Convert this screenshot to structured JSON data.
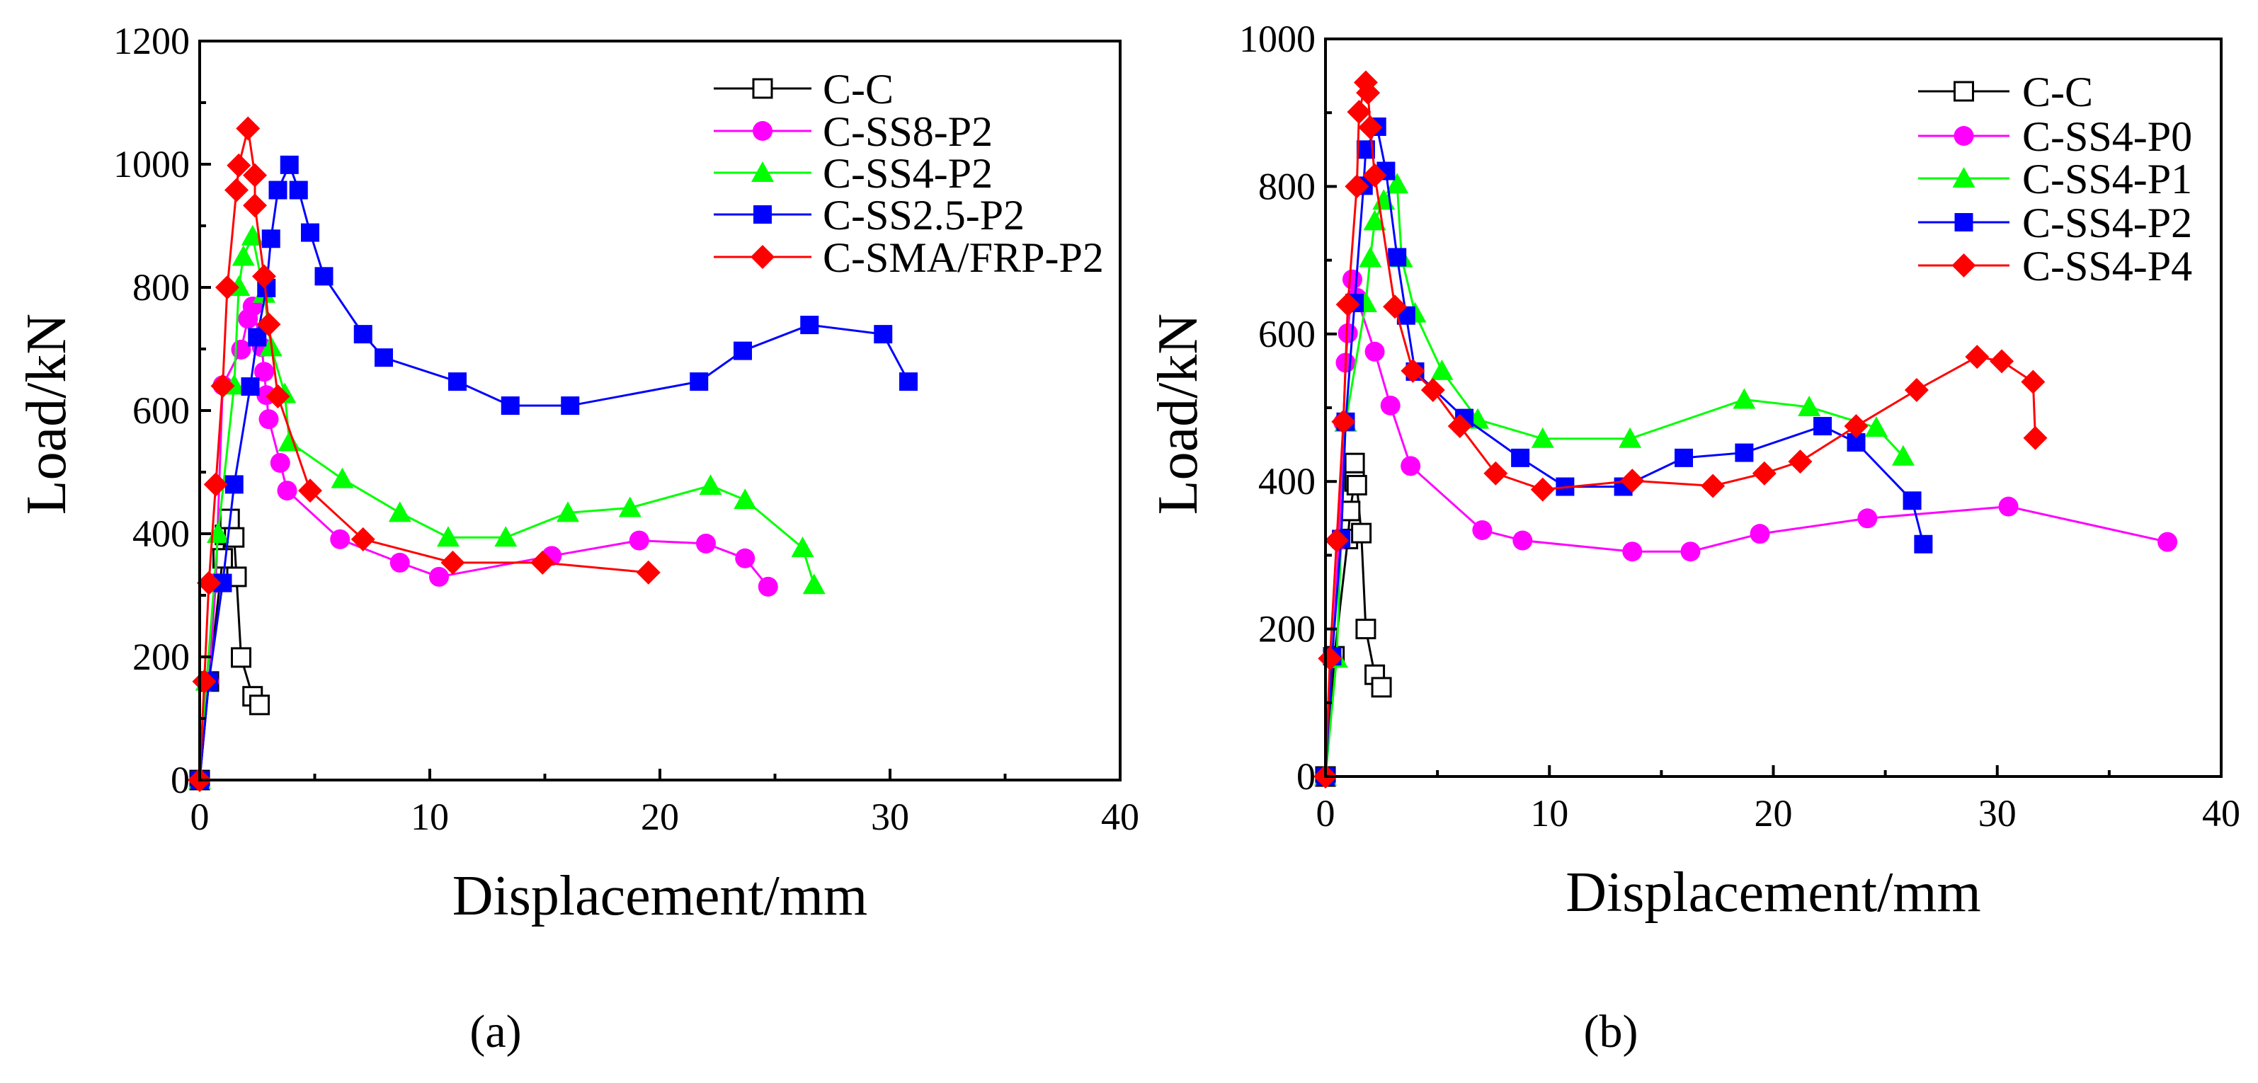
{
  "chart_data": [
    {
      "type": "line",
      "panel_label": "(a)",
      "panel_letter": "a",
      "xlabel": "Displacement/mm",
      "ylabel": "Load/kN",
      "xlim": [
        0,
        40
      ],
      "ylim": [
        0,
        1200
      ],
      "xticks": [
        0,
        10,
        20,
        30,
        40
      ],
      "yticks": [
        0,
        200,
        400,
        600,
        800,
        1000,
        1200
      ],
      "grid": false,
      "legend_position": "top-right",
      "series": [
        {
          "name": "C-C",
          "color": "#000000",
          "marker": "square-open",
          "x": [
            0,
            0.4,
            1.0,
            1.1,
            1.3,
            1.5,
            1.6,
            1.8,
            2.3,
            2.6
          ],
          "y": [
            0,
            160,
            360,
            398,
            424,
            394,
            330,
            199,
            136,
            122
          ]
        },
        {
          "name": "C-SS8-P2",
          "color": "#ff00ff",
          "marker": "circle",
          "x": [
            0,
            0.4,
            0.7,
            1.0,
            1.8,
            2.1,
            2.3,
            2.7,
            2.8,
            2.9,
            3.0,
            3.5,
            3.8,
            6.1,
            8.7,
            10.4,
            15.3,
            19.1,
            22.0,
            23.7,
            24.7
          ],
          "y": [
            0,
            160,
            320,
            641,
            699,
            749,
            769,
            703,
            663,
            625,
            586,
            515,
            470,
            391,
            353,
            330,
            364,
            389,
            384,
            360,
            314
          ]
        },
        {
          "name": "C-SS4-P2",
          "color": "#00ff00",
          "marker": "triangle",
          "x": [
            0,
            0.3,
            0.8,
            1.5,
            1.7,
            1.9,
            2.3,
            2.8,
            3.1,
            3.7,
            3.9,
            6.2,
            8.7,
            10.8,
            13.3,
            16.0,
            18.7,
            22.2,
            23.7,
            26.2,
            26.7
          ],
          "y": [
            0,
            160,
            400,
            641,
            801,
            850,
            883,
            790,
            703,
            627,
            549,
            489,
            434,
            394,
            394,
            434,
            442,
            478,
            455,
            377,
            317
          ]
        },
        {
          "name": "C-SS2.5-P2",
          "color": "#0000ff",
          "marker": "square",
          "x": [
            0,
            0.4,
            1.0,
            1.5,
            2.2,
            2.5,
            2.9,
            3.1,
            3.4,
            3.9,
            4.3,
            4.8,
            5.4,
            7.1,
            8.0,
            11.2,
            13.5,
            16.1,
            21.7,
            23.6,
            26.5,
            29.7,
            30.8
          ],
          "y": [
            0,
            160,
            320,
            480,
            639,
            719,
            799,
            879,
            958,
            999,
            958,
            889,
            818,
            724,
            686,
            647,
            608,
            608,
            647,
            697,
            739,
            724,
            647
          ]
        },
        {
          "name": "C-SMA/FRP-P2",
          "color": "#ff0000",
          "marker": "diamond",
          "x": [
            0,
            0.2,
            0.4,
            0.7,
            1.0,
            1.2,
            1.6,
            1.7,
            2.1,
            2.4,
            2.4,
            2.8,
            3.0,
            3.4,
            4.8,
            7.1,
            11.0,
            14.9,
            19.5
          ],
          "y": [
            0,
            160,
            320,
            480,
            640,
            800,
            958,
            998,
            1058,
            982,
            933,
            818,
            740,
            623,
            470,
            391,
            353,
            353,
            337
          ]
        }
      ]
    },
    {
      "type": "line",
      "panel_label": "(b)",
      "panel_letter": "b",
      "xlabel": "Displacement/mm",
      "ylabel": "Load/kN",
      "xlim": [
        0,
        40
      ],
      "ylim": [
        0,
        1000
      ],
      "xticks": [
        0,
        10,
        20,
        30,
        40
      ],
      "yticks": [
        0,
        200,
        400,
        600,
        800,
        1000
      ],
      "grid": false,
      "legend_position": "top-right",
      "series": [
        {
          "name": "C-C",
          "color": "#000000",
          "marker": "square-open",
          "x": [
            0,
            0.4,
            1.0,
            1.1,
            1.3,
            1.3,
            1.4,
            1.6,
            1.8,
            2.2,
            2.5
          ],
          "y": [
            0,
            163,
            322,
            360,
            400,
            425,
            395,
            330,
            200,
            138,
            121
          ]
        },
        {
          "name": "C-SS4-P0",
          "color": "#ff00ff",
          "marker": "circle",
          "x": [
            0,
            0.3,
            0.6,
            0.8,
            0.9,
            1.0,
            1.2,
            1.4,
            2.2,
            2.9,
            3.8,
            7.0,
            8.8,
            13.7,
            16.3,
            19.4,
            24.2,
            30.5,
            37.6
          ],
          "y": [
            0,
            160,
            320,
            480,
            561,
            601,
            674,
            649,
            576,
            503,
            421,
            334,
            320,
            305,
            305,
            329,
            350,
            366,
            318
          ]
        },
        {
          "name": "C-SS4-P1",
          "color": "#00ff00",
          "marker": "triangle",
          "x": [
            0,
            0.5,
            0.9,
            1.8,
            2.0,
            2.2,
            2.6,
            3.2,
            3.4,
            4.0,
            5.2,
            6.8,
            9.7,
            13.6,
            18.7,
            21.6,
            24.6,
            25.8
          ],
          "y": [
            0,
            160,
            480,
            642,
            703,
            753,
            781,
            803,
            703,
            628,
            550,
            484,
            458,
            458,
            511,
            501,
            473,
            434
          ]
        },
        {
          "name": "C-SS4-P2",
          "color": "#0000ff",
          "marker": "square",
          "x": [
            0,
            0.3,
            0.7,
            0.9,
            1.3,
            1.7,
            1.8,
            2.3,
            2.7,
            3.2,
            3.6,
            4.0,
            6.2,
            8.7,
            10.7,
            13.3,
            16.0,
            18.7,
            22.2,
            23.7,
            26.2,
            26.7
          ],
          "y": [
            0,
            163,
            322,
            481,
            642,
            801,
            850,
            881,
            821,
            704,
            625,
            549,
            486,
            432,
            393,
            393,
            432,
            439,
            475,
            453,
            374,
            315
          ]
        },
        {
          "name": "C-SS4-P4",
          "color": "#ff0000",
          "marker": "diamond",
          "x": [
            0,
            0.2,
            0.5,
            0.8,
            1.0,
            1.4,
            1.5,
            1.8,
            1.9,
            2.0,
            2.2,
            3.1,
            3.9,
            4.8,
            6.0,
            7.6,
            9.7,
            13.7,
            17.3,
            19.6,
            21.2,
            23.7,
            26.4,
            29.1,
            30.2,
            31.6,
            31.7
          ],
          "y": [
            0,
            160,
            320,
            481,
            640,
            800,
            901,
            941,
            927,
            880,
            815,
            637,
            550,
            524,
            475,
            411,
            389,
            401,
            394,
            411,
            427,
            475,
            524,
            569,
            563,
            535,
            459
          ]
        }
      ]
    }
  ]
}
